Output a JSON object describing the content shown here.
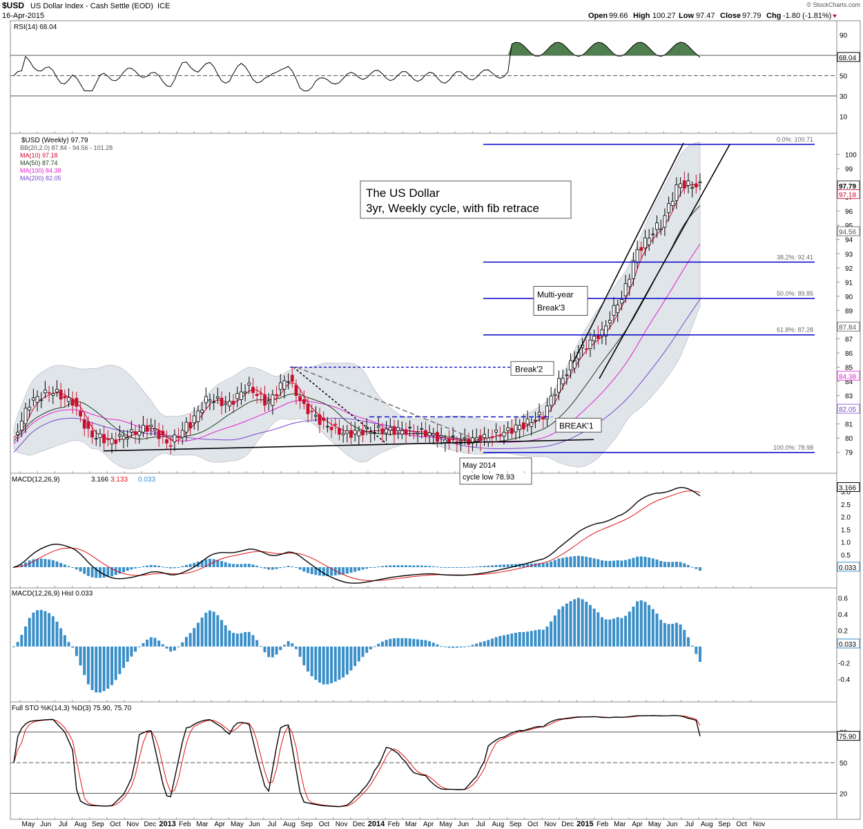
{
  "header": {
    "symbol": "$USD",
    "name": "US Dollar Index - Cash Settle (EOD)",
    "exchange": "ICE",
    "date": "16-Apr-2015",
    "watermark": "© StockCharts.com",
    "open_label": "Open",
    "open": "99.66",
    "high_label": "High",
    "high": "100.27",
    "low_label": "Low",
    "low": "97.47",
    "close_label": "Close",
    "close": "97.79",
    "chg_label": "Chg",
    "chg": "-1.80 (-1.81%)"
  },
  "colors": {
    "up": "#000000",
    "down": "#c8102e",
    "fib": "#0000c8",
    "bb_fill": "#dde3e8",
    "ma10": "#d4002a",
    "ma50": "#1a3d1a",
    "ma100": "#e020d0",
    "ma200": "#7a44cc",
    "macd_line": "#000000",
    "signal": "#e01010",
    "hist": "#3a8fc8",
    "rsi_fill": "#4f7f4f",
    "sto_k": "#000000",
    "sto_d": "#e01010"
  },
  "x_axis": {
    "labels": [
      "May",
      "Jun",
      "Jul",
      "Aug",
      "Sep",
      "Oct",
      "Nov",
      "Dec",
      "2013",
      "Feb",
      "Mar",
      "Apr",
      "May",
      "Jun",
      "Jul",
      "Aug",
      "Sep",
      "Oct",
      "Nov",
      "Dec",
      "2014",
      "Feb",
      "Mar",
      "Apr",
      "May",
      "Jun",
      "Jul",
      "Aug",
      "Sep",
      "Oct",
      "Nov",
      "Dec",
      "2015",
      "Feb",
      "Mar",
      "Apr",
      "May",
      "Jun",
      "Jul",
      "Aug",
      "Sep",
      "Oct",
      "Nov"
    ],
    "bold": [
      "2013",
      "2014",
      "2015"
    ]
  },
  "rsi": {
    "legend": "RSI(14) 68.04",
    "last_label": "68.04",
    "ticks": [
      90,
      70,
      50,
      30,
      10
    ],
    "levels": [
      70,
      50,
      30
    ]
  },
  "price": {
    "legend_title": "$USD (Weekly) 97.79",
    "legend_bb": "BB(20,2.0) 87.84 - 94.56 - 101.28",
    "legend_ma10": "MA(10) 97.18",
    "legend_ma50": "MA(50) 87.74",
    "legend_ma100": "MA(100) 84.38",
    "legend_ma200": "MA(200) 82.05",
    "title_line1": "The US Dollar",
    "title_line2": "3yr, Weekly cycle, with fib retrace",
    "ylim": [
      78.5,
      101
    ],
    "ticks": [
      79,
      80,
      81,
      82,
      83,
      84,
      85,
      86,
      87,
      88,
      89,
      90,
      91,
      92,
      93,
      94,
      95,
      96,
      97,
      98,
      99,
      100
    ],
    "right_labels": [
      {
        "text": "97.79",
        "v": 97.79,
        "color": "#000000",
        "bold": true
      },
      {
        "text": "97.18",
        "v": 97.18,
        "color": "#d4002a"
      },
      {
        "text": "94.56",
        "v": 94.56,
        "color": "#555555"
      },
      {
        "text": "87.84",
        "v": 87.84,
        "color": "#555555"
      },
      {
        "text": "84.38",
        "v": 84.38,
        "color": "#e020d0"
      },
      {
        "text": "82.05",
        "v": 82.05,
        "color": "#7a44cc"
      }
    ],
    "fib_levels": [
      {
        "label": "0.0%: 100.71",
        "v": 100.71
      },
      {
        "label": "38.2%: 92.41",
        "v": 92.41
      },
      {
        "label": "50.0%: 89.85",
        "v": 89.85
      },
      {
        "label": "61.8%: 87.28",
        "v": 87.28
      },
      {
        "label": "100.0%: 78.98",
        "v": 78.98
      }
    ],
    "annotations": {
      "break1": "BREAK'1",
      "break2": "Break'2",
      "break3_line1": "Multi-year",
      "break3_line2": "Break'3",
      "low_line1": "May 2014",
      "low_line2": "cycle low 78.93"
    }
  },
  "macd": {
    "legend_name": "MACD(12,26,9)",
    "legend_macd": "3.166",
    "legend_signal": "3.133",
    "legend_hist": "0.033",
    "last_macd": "3.166",
    "last_hist": "0.033",
    "ticks": [
      3.0,
      2.5,
      2.0,
      1.5,
      1.0,
      0.5
    ]
  },
  "hist": {
    "legend": "MACD(12,26,9) Hist 0.033",
    "last_label": "0.033",
    "ticks": [
      0.6,
      0.4,
      0.2,
      -0.2,
      -0.4
    ]
  },
  "sto": {
    "legend": "Full STO %K(14,3) %D(3) 75.90, 75.70",
    "last_label": "75.90",
    "ticks": [
      80,
      50,
      20
    ]
  },
  "chart_data": {
    "type": "line",
    "title": "The US Dollar 3yr, Weekly cycle, with fib retrace",
    "series": [
      {
        "name": "$USD (Weekly)",
        "x": [
          "May",
          "Jun",
          "Jul",
          "Aug",
          "Sep",
          "Oct",
          "Nov",
          "Dec",
          "2013",
          "Feb",
          "Mar",
          "Apr",
          "May",
          "Jun",
          "Jul",
          "Aug",
          "Sep",
          "Oct",
          "Nov",
          "Dec",
          "2014",
          "Feb",
          "Mar",
          "Apr",
          "May",
          "Jun",
          "Jul",
          "Aug",
          "Sep",
          "Oct",
          "Nov",
          "Dec",
          "2015",
          "Feb",
          "Mar",
          "Apr"
        ],
        "values": [
          80.0,
          82.7,
          83.3,
          82.6,
          80.2,
          79.8,
          80.3,
          80.8,
          79.6,
          81.0,
          82.8,
          82.4,
          83.6,
          82.5,
          84.2,
          82.0,
          80.9,
          80.3,
          80.5,
          80.6,
          80.5,
          80.4,
          79.9,
          79.8,
          80.0,
          80.4,
          80.9,
          81.6,
          84.2,
          86.3,
          87.4,
          89.8,
          93.5,
          95.0,
          97.9,
          97.79
        ]
      }
    ],
    "ylim": [
      78.5,
      101
    ],
    "fib": {
      "0.0%": 100.71,
      "38.2%": 92.41,
      "50.0%": 89.85,
      "61.8%": 87.28,
      "100.0%": 78.98
    }
  }
}
